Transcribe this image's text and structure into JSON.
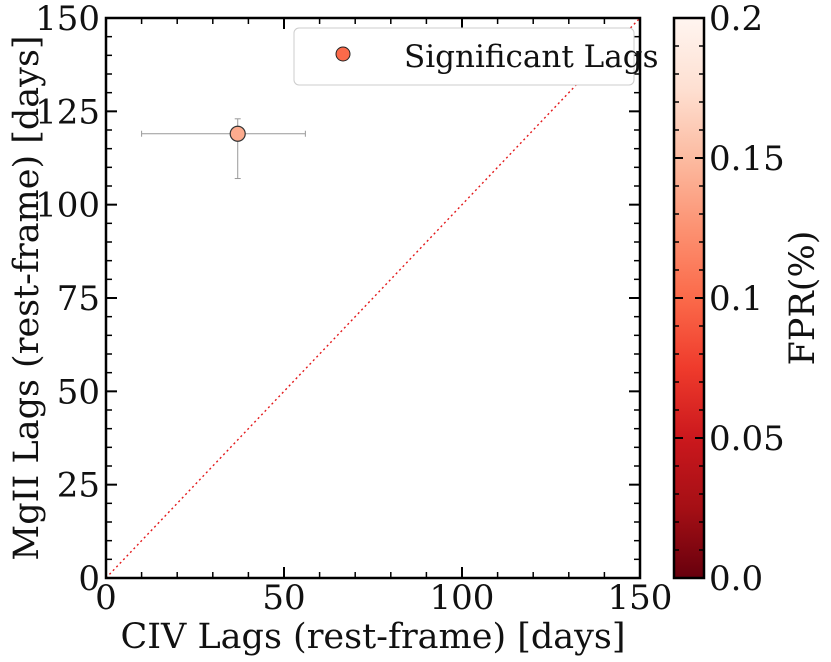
{
  "chart_data": {
    "type": "scatter",
    "title": "",
    "xlabel": "CIV Lags (rest-frame) [days]",
    "ylabel": "MgII Lags (rest-frame) [days]",
    "xlim": [
      0,
      150
    ],
    "ylim": [
      0,
      150
    ],
    "x_ticks": [
      0,
      50,
      100,
      150
    ],
    "x_tick_labels": [
      "0",
      "50",
      "100",
      "150"
    ],
    "y_ticks": [
      0,
      25,
      50,
      75,
      100,
      125,
      150
    ],
    "y_tick_labels": [
      "0",
      "25",
      "50",
      "75",
      "100",
      "125",
      "150"
    ],
    "grid": false,
    "legend": {
      "position": "top-right",
      "label": "Significant Lags"
    },
    "reference_line": {
      "type": "one-to-one",
      "color": "#e31a1c",
      "style": "dotted"
    },
    "series": [
      {
        "name": "Significant Lags",
        "points": [
          {
            "x": 37,
            "y": 119,
            "x_err_low": 27,
            "x_err_high": 19,
            "y_err_low": 12,
            "y_err_high": 4,
            "fpr": 0.14
          }
        ]
      }
    ],
    "colorbar": {
      "label": "FPR(%)",
      "min": 0.0,
      "max": 0.2,
      "ticks": [
        0.0,
        0.05,
        0.1,
        0.15,
        0.2
      ],
      "tick_labels": [
        "0.0",
        "0.05",
        "0.1",
        "0.15",
        "0.2"
      ],
      "colormap": [
        "#67000d",
        "#a50f15",
        "#cb181d",
        "#ef3b2c",
        "#fb6a4a",
        "#fc9272",
        "#fcbba1",
        "#fee0d2",
        "#fff5f0"
      ]
    }
  }
}
